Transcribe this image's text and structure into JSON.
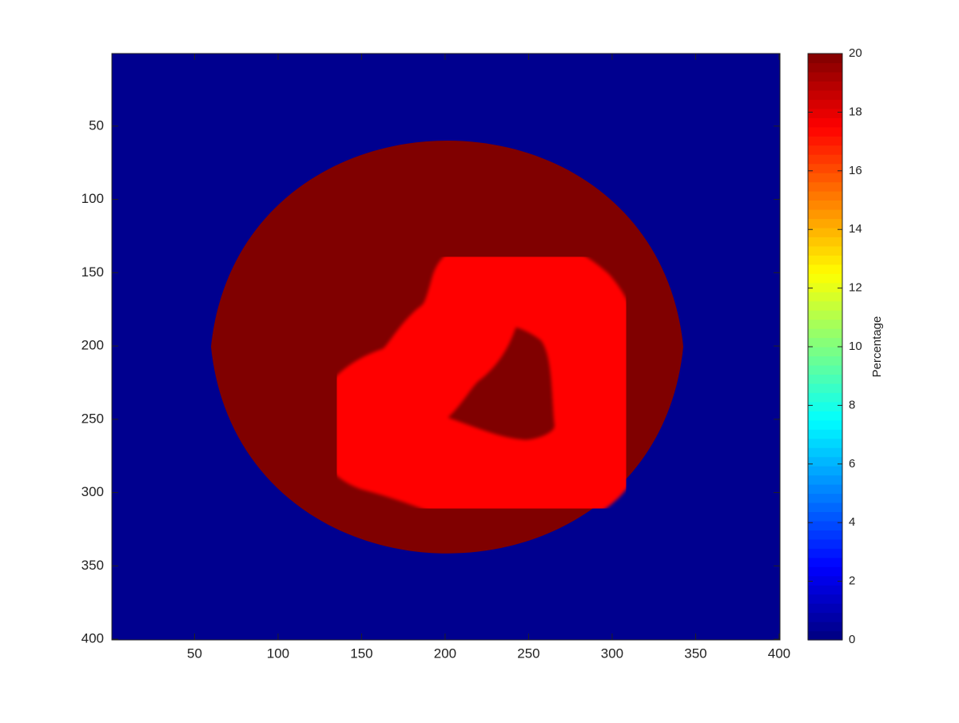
{
  "chart_data": {
    "type": "heatmap",
    "xlim": [
      0.5,
      400.5
    ],
    "xticks": [
      50,
      100,
      150,
      200,
      250,
      300,
      350,
      400
    ],
    "ylim": [
      0.5,
      400.5
    ],
    "yticks": [
      50,
      100,
      150,
      200,
      250,
      300,
      350,
      400
    ],
    "y_reversed": true,
    "colormap": "jet",
    "colorbar": {
      "label": "Percentage",
      "lim": [
        0,
        20
      ],
      "ticks": [
        0,
        2,
        4,
        6,
        8,
        10,
        12,
        14,
        16,
        18,
        20
      ]
    }
  }
}
